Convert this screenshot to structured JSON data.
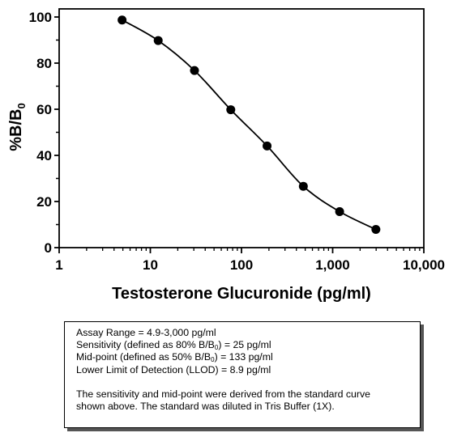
{
  "chart_data": {
    "type": "scatter",
    "xlabel": "Testosterone Glucuronide (pg/ml)",
    "ylabel_main": "%B/B",
    "ylabel_sub": "0",
    "x_scale": "log",
    "xlim": [
      1,
      10000
    ],
    "ylim": [
      0,
      100
    ],
    "x_ticks": [
      1,
      10,
      100,
      1000,
      10000
    ],
    "x_tick_labels": [
      "1",
      "10",
      "100",
      "1,000",
      "10,000"
    ],
    "y_ticks": [
      0,
      20,
      40,
      60,
      80,
      100
    ],
    "y_tick_labels": [
      "0",
      "20",
      "40",
      "60",
      "80",
      "100"
    ],
    "grid": false,
    "series": [
      {
        "x": [
          4.9,
          12.2,
          30.5,
          76.3,
          190.7,
          476.8,
          1192,
          2980
        ],
        "y": [
          98.7,
          89.8,
          76.8,
          59.8,
          44.1,
          26.6,
          15.6,
          7.9
        ],
        "marker": "filled-circle",
        "fit": "four-parameter logistic curve"
      }
    ]
  },
  "info_box": {
    "assay_range": "Assay Range = 4.9-3,000 pg/ml",
    "sensitivity_pre": "Sensitivity (defined as 80% B/B",
    "sensitivity_sub": "0",
    "sensitivity_post": ") = 25 pg/ml",
    "midpoint_pre": "Mid-point (defined as 50% B/B",
    "midpoint_sub": "0",
    "midpoint_post": ") =  133 pg/ml",
    "llod": "Lower Limit of Detection (LLOD) =  8.9 pg/ml",
    "note_line1": "The sensitivity and mid-point were derived from the standard curve",
    "note_line2": "shown above. The standard was diluted in Tris Buffer (1X)."
  }
}
